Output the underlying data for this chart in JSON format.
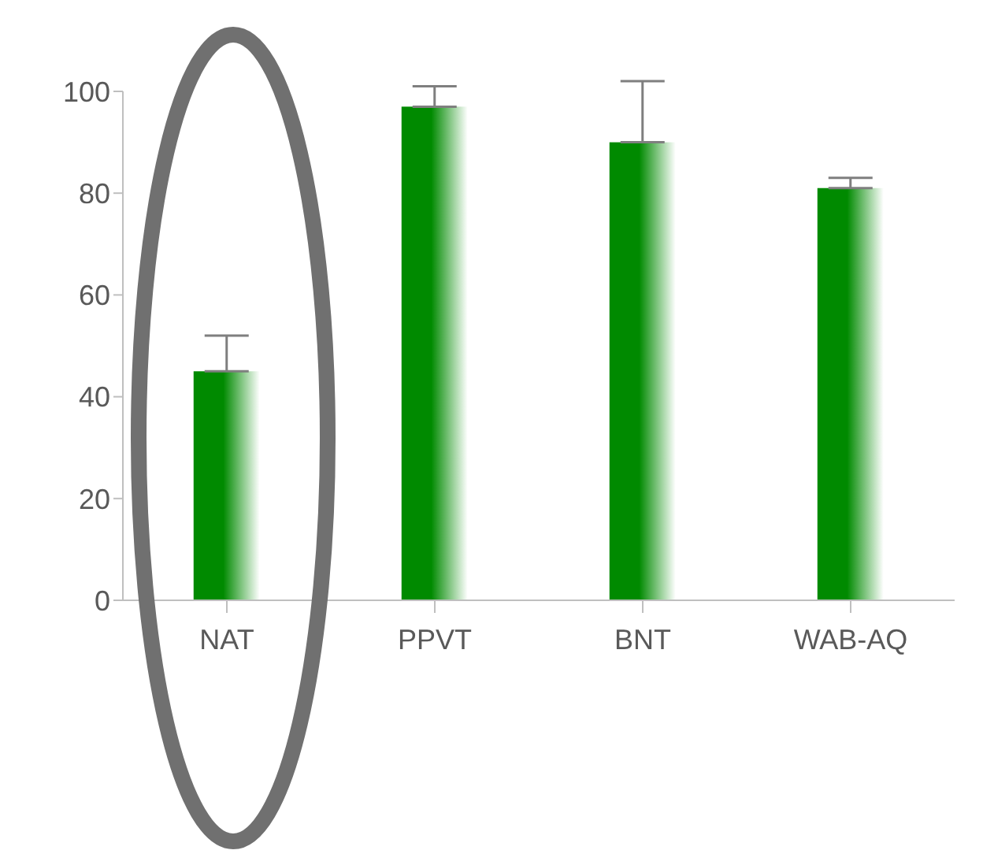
{
  "chart_data": {
    "type": "bar",
    "categories": [
      "NAT",
      "PPVT",
      "BNT",
      "WAB-AQ"
    ],
    "values": [
      45,
      97,
      90,
      81
    ],
    "errors": [
      [
        45,
        52
      ],
      [
        97,
        101
      ],
      [
        90,
        102
      ],
      [
        81,
        83
      ]
    ],
    "color": "#008a00",
    "ylim": [
      0,
      100
    ],
    "yticks": [
      0,
      20,
      40,
      60,
      80,
      100
    ],
    "grid": false,
    "legend": false
  }
}
